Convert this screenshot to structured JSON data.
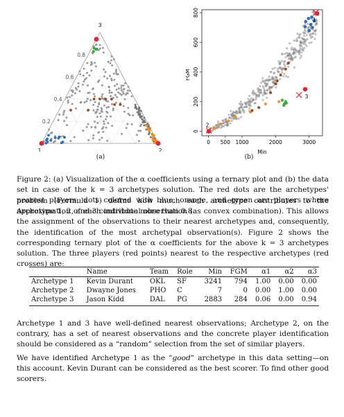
{
  "figure": {
    "label_a": "(a)",
    "label_b": "(b)",
    "caption": "Figure 2: (a) Visualization of the α coefficients using a ternary plot and (b) the data set in case of the k = 3 archetypes solution. The red dots are the archetypes' nearest players; dots colored with blue, orange, and green are players where Archetype 1, 2, and 3 contribute more than 0.8."
  },
  "chart_data": [
    {
      "type": "scatter",
      "subtype": "ternary",
      "vertex_labels": [
        "1",
        "2",
        "3"
      ],
      "tick_labels": [
        "0.2",
        "0.4",
        "0.6",
        "0.8"
      ],
      "colors": {
        "gray": "#9a9a9a",
        "red": "#e3242b",
        "blue": "#2f6db5",
        "orange": "#f0901e",
        "green": "#3aa83a",
        "brown": "#9c4a1a"
      },
      "nearest_players": [
        {
          "archetype": "1",
          "alpha": [
            1.0,
            0.0,
            0.0
          ]
        },
        {
          "archetype": "2",
          "alpha": [
            0.0,
            1.0,
            0.0
          ]
        },
        {
          "archetype": "3",
          "alpha": [
            0.06,
            0.0,
            0.94
          ]
        }
      ]
    },
    {
      "type": "scatter",
      "xlabel": "Min",
      "ylabel": "FGM",
      "xlim": [
        -200,
        3400
      ],
      "ylim": [
        -30,
        820
      ],
      "xticks": [
        0,
        500,
        1000,
        2000,
        3000
      ],
      "yticks": [
        0,
        200,
        400,
        600,
        800
      ],
      "point_labels": [
        "1",
        "2",
        "3"
      ],
      "nearest_players": [
        {
          "label": "1",
          "x": 3241,
          "y": 794
        },
        {
          "label": "2",
          "x": 7,
          "y": 0
        },
        {
          "label": "3",
          "x": 2883,
          "y": 284
        }
      ],
      "archetypes_crosses": [
        {
          "label": "1",
          "x": 3200,
          "y": 800
        },
        {
          "label": "2",
          "x": 10,
          "y": 5
        },
        {
          "label": "3",
          "x": 2700,
          "y": 245
        }
      ],
      "blue_players": [
        [
          2900,
          740
        ],
        [
          2980,
          760
        ],
        [
          3050,
          720
        ],
        [
          3100,
          700
        ],
        [
          3000,
          680
        ],
        [
          2880,
          705
        ],
        [
          3150,
          745
        ],
        [
          3080,
          770
        ]
      ],
      "orange_players": [
        [
          180,
          20
        ],
        [
          350,
          50
        ],
        [
          600,
          70
        ],
        [
          800,
          95
        ],
        [
          1250,
          130
        ],
        [
          1700,
          185
        ],
        [
          2100,
          200
        ]
      ],
      "green_players": [
        [
          2200,
          210
        ],
        [
          2260,
          185
        ],
        [
          2300,
          200
        ],
        [
          2250,
          175
        ],
        [
          2320,
          190
        ]
      ],
      "brown_players": [
        [
          1300,
          140
        ],
        [
          1500,
          160
        ],
        [
          1850,
          260
        ],
        [
          2000,
          320
        ],
        [
          2050,
          340
        ],
        [
          2150,
          380
        ],
        [
          2300,
          420
        ],
        [
          2380,
          460
        ]
      ]
    }
  ],
  "body": {
    "para1": "problem (Formula 1) define how much each archetype contributes to the approximation of each individual observation (as convex combination). This allows the assignment of the observations to their nearest archetypes and, consequently, the identification of the most archetypal observation(s). Figure 2 shows the corresponding ternary plot of the α coefficients for the above k = 3 archetypes solution. The three players (red points) nearest to the respective archetypes (red crosses) are:",
    "para2": "Archetype 1 and 3 have well-defined nearest observations; Archetype 2, on the contrary, has a set of nearest observations and the concrete player identification should be considered as a “random” selection from the set of similar players.",
    "para3_a": "We have identified Archetype 1 as the “",
    "para3_em": "good",
    "para3_b": "” archetype in this data setting—on this account. Kevin Durant can be considered as the best scorer. To find other good scorers."
  },
  "table": {
    "headers": [
      "",
      "Name",
      "Team",
      "Role",
      "Min",
      "FGM",
      "α1",
      "α2",
      "α3"
    ],
    "rows": [
      [
        "Archetype 1",
        "Kevin Durant",
        "OKL",
        "SF",
        "3241",
        "794",
        "1.00",
        "0.00",
        "0.00"
      ],
      [
        "Archetype 2",
        "Dwayne Jones",
        "PHO",
        "C",
        "7",
        "0",
        "0.00",
        "1.00",
        "0.00"
      ],
      [
        "Archetype 3",
        "Jason Kidd",
        "DAL",
        "PG",
        "2883",
        "284",
        "0.06",
        "0.00",
        "0.94"
      ]
    ]
  }
}
